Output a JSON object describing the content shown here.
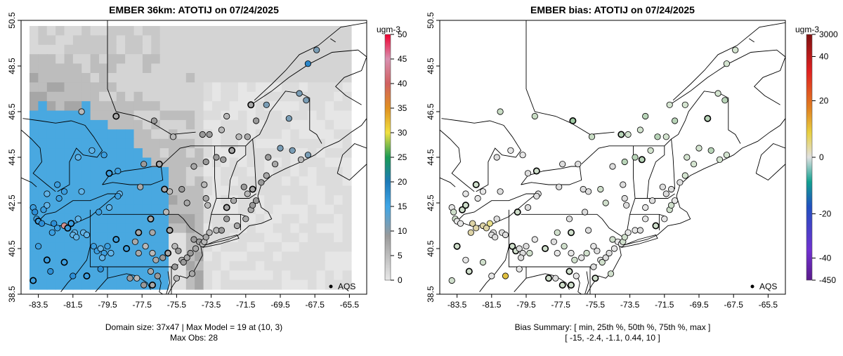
{
  "chart_data": [
    {
      "type": "heatmap",
      "title": "EMBER 36km: ATOTIJ on 07/24/2025",
      "xticks": [
        "-83.5",
        "-81.5",
        "-79.5",
        "-77.5",
        "-75.5",
        "-73.5",
        "-71.5",
        "-69.5",
        "-67.5",
        "-65.5"
      ],
      "yticks": [
        "38.5",
        "40.5",
        "42.5",
        "44.5",
        "46.5",
        "48.5",
        "50.5"
      ],
      "xlim": [
        -84.5,
        -64.5
      ],
      "ylim": [
        38.5,
        50.5
      ],
      "colorbar_unit": "ugm-3",
      "colorbar_ticks": [
        "0",
        "5",
        "10",
        "15",
        "20",
        "25",
        "30",
        "35",
        "40",
        "45",
        "50"
      ],
      "colorbar_range": [
        0,
        50
      ],
      "legend": "AQS",
      "footer_line1": "Domain size: 37x47 | Max Model = 19 at (10, 3)",
      "footer_line2": "Max Obs: 28"
    },
    {
      "type": "heatmap",
      "title": "EMBER bias: ATOTIJ on 07/24/2025",
      "xticks": [
        "-83.5",
        "-81.5",
        "-79.5",
        "-77.5",
        "-75.5",
        "-73.5",
        "-71.5",
        "-69.5",
        "-67.5",
        "-65.5"
      ],
      "yticks": [
        "38.5",
        "40.5",
        "42.5",
        "44.5",
        "46.5",
        "48.5",
        "50.5"
      ],
      "xlim": [
        -84.5,
        -64.5
      ],
      "ylim": [
        38.5,
        50.5
      ],
      "colorbar_unit": "ugm-3",
      "colorbar_ticks": [
        "3000",
        "40",
        "20",
        "0",
        "-20",
        "-40",
        "-450"
      ],
      "legend": "AQS",
      "footer_line1": "Bias Summary: [ min, 25th %, 50th %, 75th %, max ]",
      "footer_line2": "[ -15,   -2.4,   -1.1,   0.44,   10 ]",
      "bias_summary": {
        "min": -15,
        "p25": -2.4,
        "p50": -1.1,
        "p75": 0.44,
        "max": 10
      }
    }
  ],
  "colors": {
    "smoke": "#49a8e0",
    "gray_dark": "#8f8f8f",
    "gray_mid": "#b5b5b5",
    "gray_light": "#dedede",
    "frame": "#000000"
  }
}
